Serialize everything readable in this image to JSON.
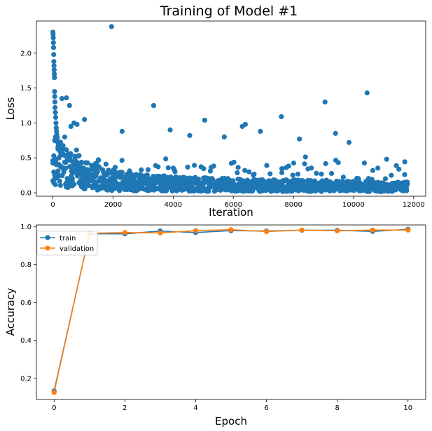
{
  "figure": {
    "title": "Training of Model #1"
  },
  "chart_data": [
    {
      "type": "scatter",
      "title": "Training of Model #1",
      "xlabel": "Iteration",
      "ylabel": "Loss",
      "xlim": [
        -550,
        12400
      ],
      "ylim": [
        -0.05,
        2.46
      ],
      "xticks": [
        0,
        2000,
        4000,
        6000,
        8000,
        10000,
        12000
      ],
      "yticks": [
        0.0,
        0.5,
        1.0,
        1.5,
        2.0
      ],
      "xtick_labels": [
        "0",
        "2000",
        "4000",
        "6000",
        "8000",
        "10000",
        "12000"
      ],
      "ytick_labels": [
        "0.0",
        "0.5",
        "1.0",
        "1.5",
        "2.0"
      ],
      "grid": false,
      "color": "#1f77b4",
      "points": [
        {
          "x": 0,
          "y": 2.3
        },
        {
          "x": 5,
          "y": 2.27
        },
        {
          "x": 10,
          "y": 2.22
        },
        {
          "x": 15,
          "y": 2.15
        },
        {
          "x": 20,
          "y": 2.08
        },
        {
          "x": 25,
          "y": 1.98
        },
        {
          "x": 30,
          "y": 1.88
        },
        {
          "x": 35,
          "y": 1.82
        },
        {
          "x": 40,
          "y": 1.76
        },
        {
          "x": 45,
          "y": 1.7
        },
        {
          "x": 50,
          "y": 1.65
        },
        {
          "x": 55,
          "y": 1.45
        },
        {
          "x": 60,
          "y": 1.38
        },
        {
          "x": 65,
          "y": 1.3
        },
        {
          "x": 70,
          "y": 1.22
        },
        {
          "x": 80,
          "y": 1.15
        },
        {
          "x": 90,
          "y": 1.08
        },
        {
          "x": 100,
          "y": 1.0
        },
        {
          "x": 110,
          "y": 0.93
        },
        {
          "x": 120,
          "y": 0.88
        },
        {
          "x": 130,
          "y": 0.83
        },
        {
          "x": 140,
          "y": 0.78
        },
        {
          "x": 160,
          "y": 0.72
        },
        {
          "x": 180,
          "y": 0.68
        },
        {
          "x": 200,
          "y": 0.65
        },
        {
          "x": 250,
          "y": 0.6
        },
        {
          "x": 300,
          "y": 1.35
        },
        {
          "x": 450,
          "y": 1.36
        },
        {
          "x": 550,
          "y": 1.25
        },
        {
          "x": 600,
          "y": 0.95
        },
        {
          "x": 700,
          "y": 1.0
        },
        {
          "x": 800,
          "y": 0.98
        },
        {
          "x": 1050,
          "y": 1.05
        },
        {
          "x": 1950,
          "y": 2.38
        },
        {
          "x": 2300,
          "y": 0.88
        },
        {
          "x": 3350,
          "y": 1.25
        },
        {
          "x": 3900,
          "y": 0.9
        },
        {
          "x": 4550,
          "y": 0.82
        },
        {
          "x": 5050,
          "y": 1.04
        },
        {
          "x": 5700,
          "y": 0.8
        },
        {
          "x": 6300,
          "y": 0.95
        },
        {
          "x": 6400,
          "y": 0.98
        },
        {
          "x": 6900,
          "y": 0.88
        },
        {
          "x": 7600,
          "y": 1.09
        },
        {
          "x": 8200,
          "y": 0.77
        },
        {
          "x": 9050,
          "y": 1.3
        },
        {
          "x": 9400,
          "y": 0.85
        },
        {
          "x": 10450,
          "y": 1.43
        },
        {
          "x": 9850,
          "y": 0.72
        },
        {
          "x": 11100,
          "y": 0.48
        },
        {
          "x": 11700,
          "y": 0.26
        }
      ],
      "points_note_trend": [
        0.55,
        0.3,
        0.2,
        0.17,
        0.15,
        0.14,
        0.13,
        0.12,
        0.12,
        0.11,
        0.11,
        0.1
      ]
    },
    {
      "type": "line",
      "title": "",
      "xlabel": "Epoch",
      "ylabel": "Accuracy",
      "xlim": [
        -0.5,
        10.5
      ],
      "ylim": [
        0.088,
        1.01
      ],
      "xticks": [
        0,
        2,
        4,
        6,
        8,
        10
      ],
      "yticks": [
        0.2,
        0.4,
        0.6,
        0.8,
        1.0
      ],
      "xtick_labels": [
        "0",
        "2",
        "4",
        "6",
        "8",
        "10"
      ],
      "ytick_labels": [
        "0.2",
        "0.4",
        "0.6",
        "0.8",
        "1.0"
      ],
      "grid": false,
      "legend": "top-left",
      "x": [
        0,
        1,
        2,
        3,
        4,
        5,
        6,
        7,
        8,
        9,
        10
      ],
      "series": [
        {
          "name": "train",
          "color": "#1f77b4",
          "values": [
            0.133,
            0.964,
            0.963,
            0.978,
            0.97,
            0.98,
            0.978,
            0.982,
            0.982,
            0.976,
            0.987
          ]
        },
        {
          "name": "validation",
          "color": "#ff7f0e",
          "values": [
            0.125,
            0.966,
            0.97,
            0.968,
            0.98,
            0.985,
            0.975,
            0.983,
            0.979,
            0.983,
            0.983
          ]
        }
      ]
    }
  ]
}
